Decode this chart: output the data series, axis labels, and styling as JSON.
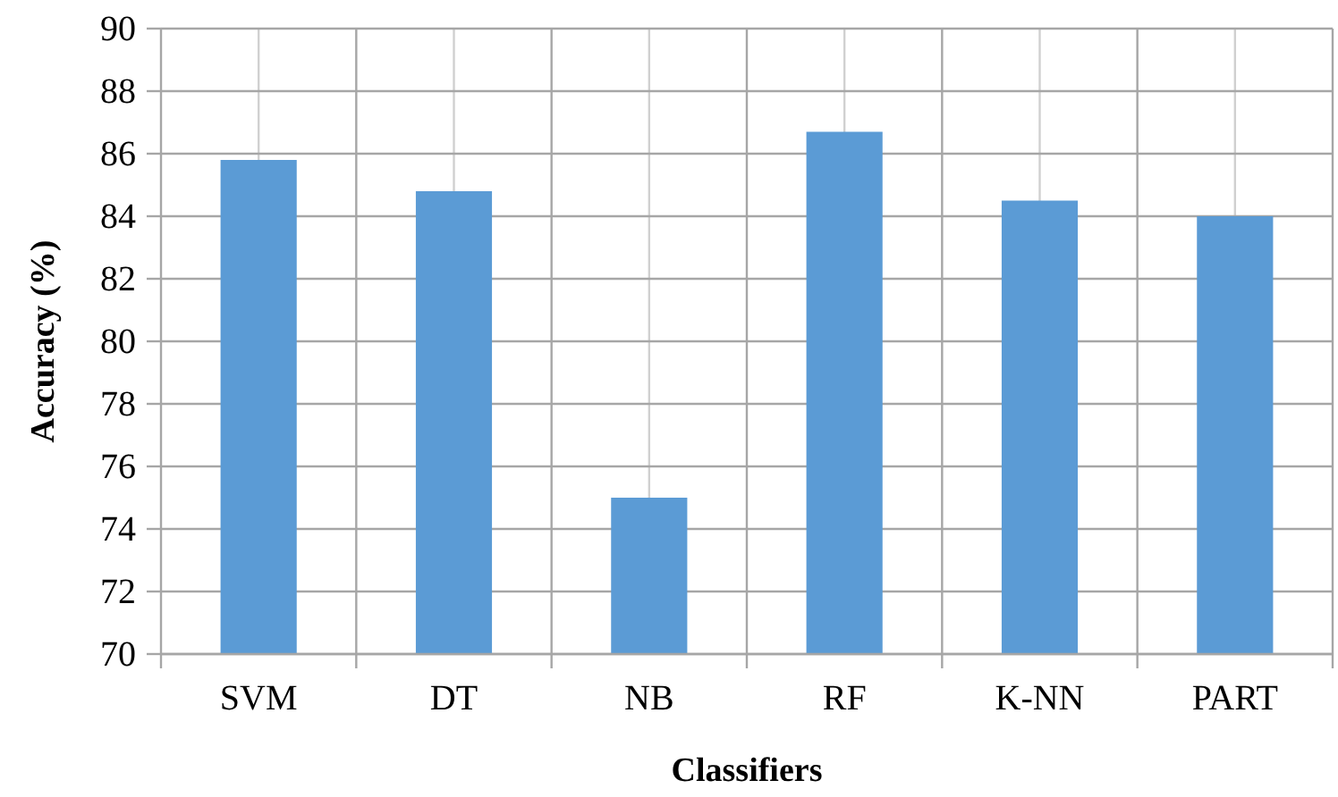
{
  "chart_data": {
    "type": "bar",
    "xlabel": "Classifiers",
    "ylabel": "Accuracy (%)",
    "categories": [
      "SVM",
      "DT",
      "NB",
      "RF",
      "K-NN",
      "PART"
    ],
    "values": [
      85.8,
      84.8,
      75.0,
      86.7,
      84.5,
      84.0
    ],
    "color": "#5b9bd5",
    "ylim": [
      70,
      90
    ],
    "yticks": [
      70,
      72,
      74,
      76,
      78,
      80,
      82,
      84,
      86,
      88,
      90
    ],
    "grid": true
  }
}
